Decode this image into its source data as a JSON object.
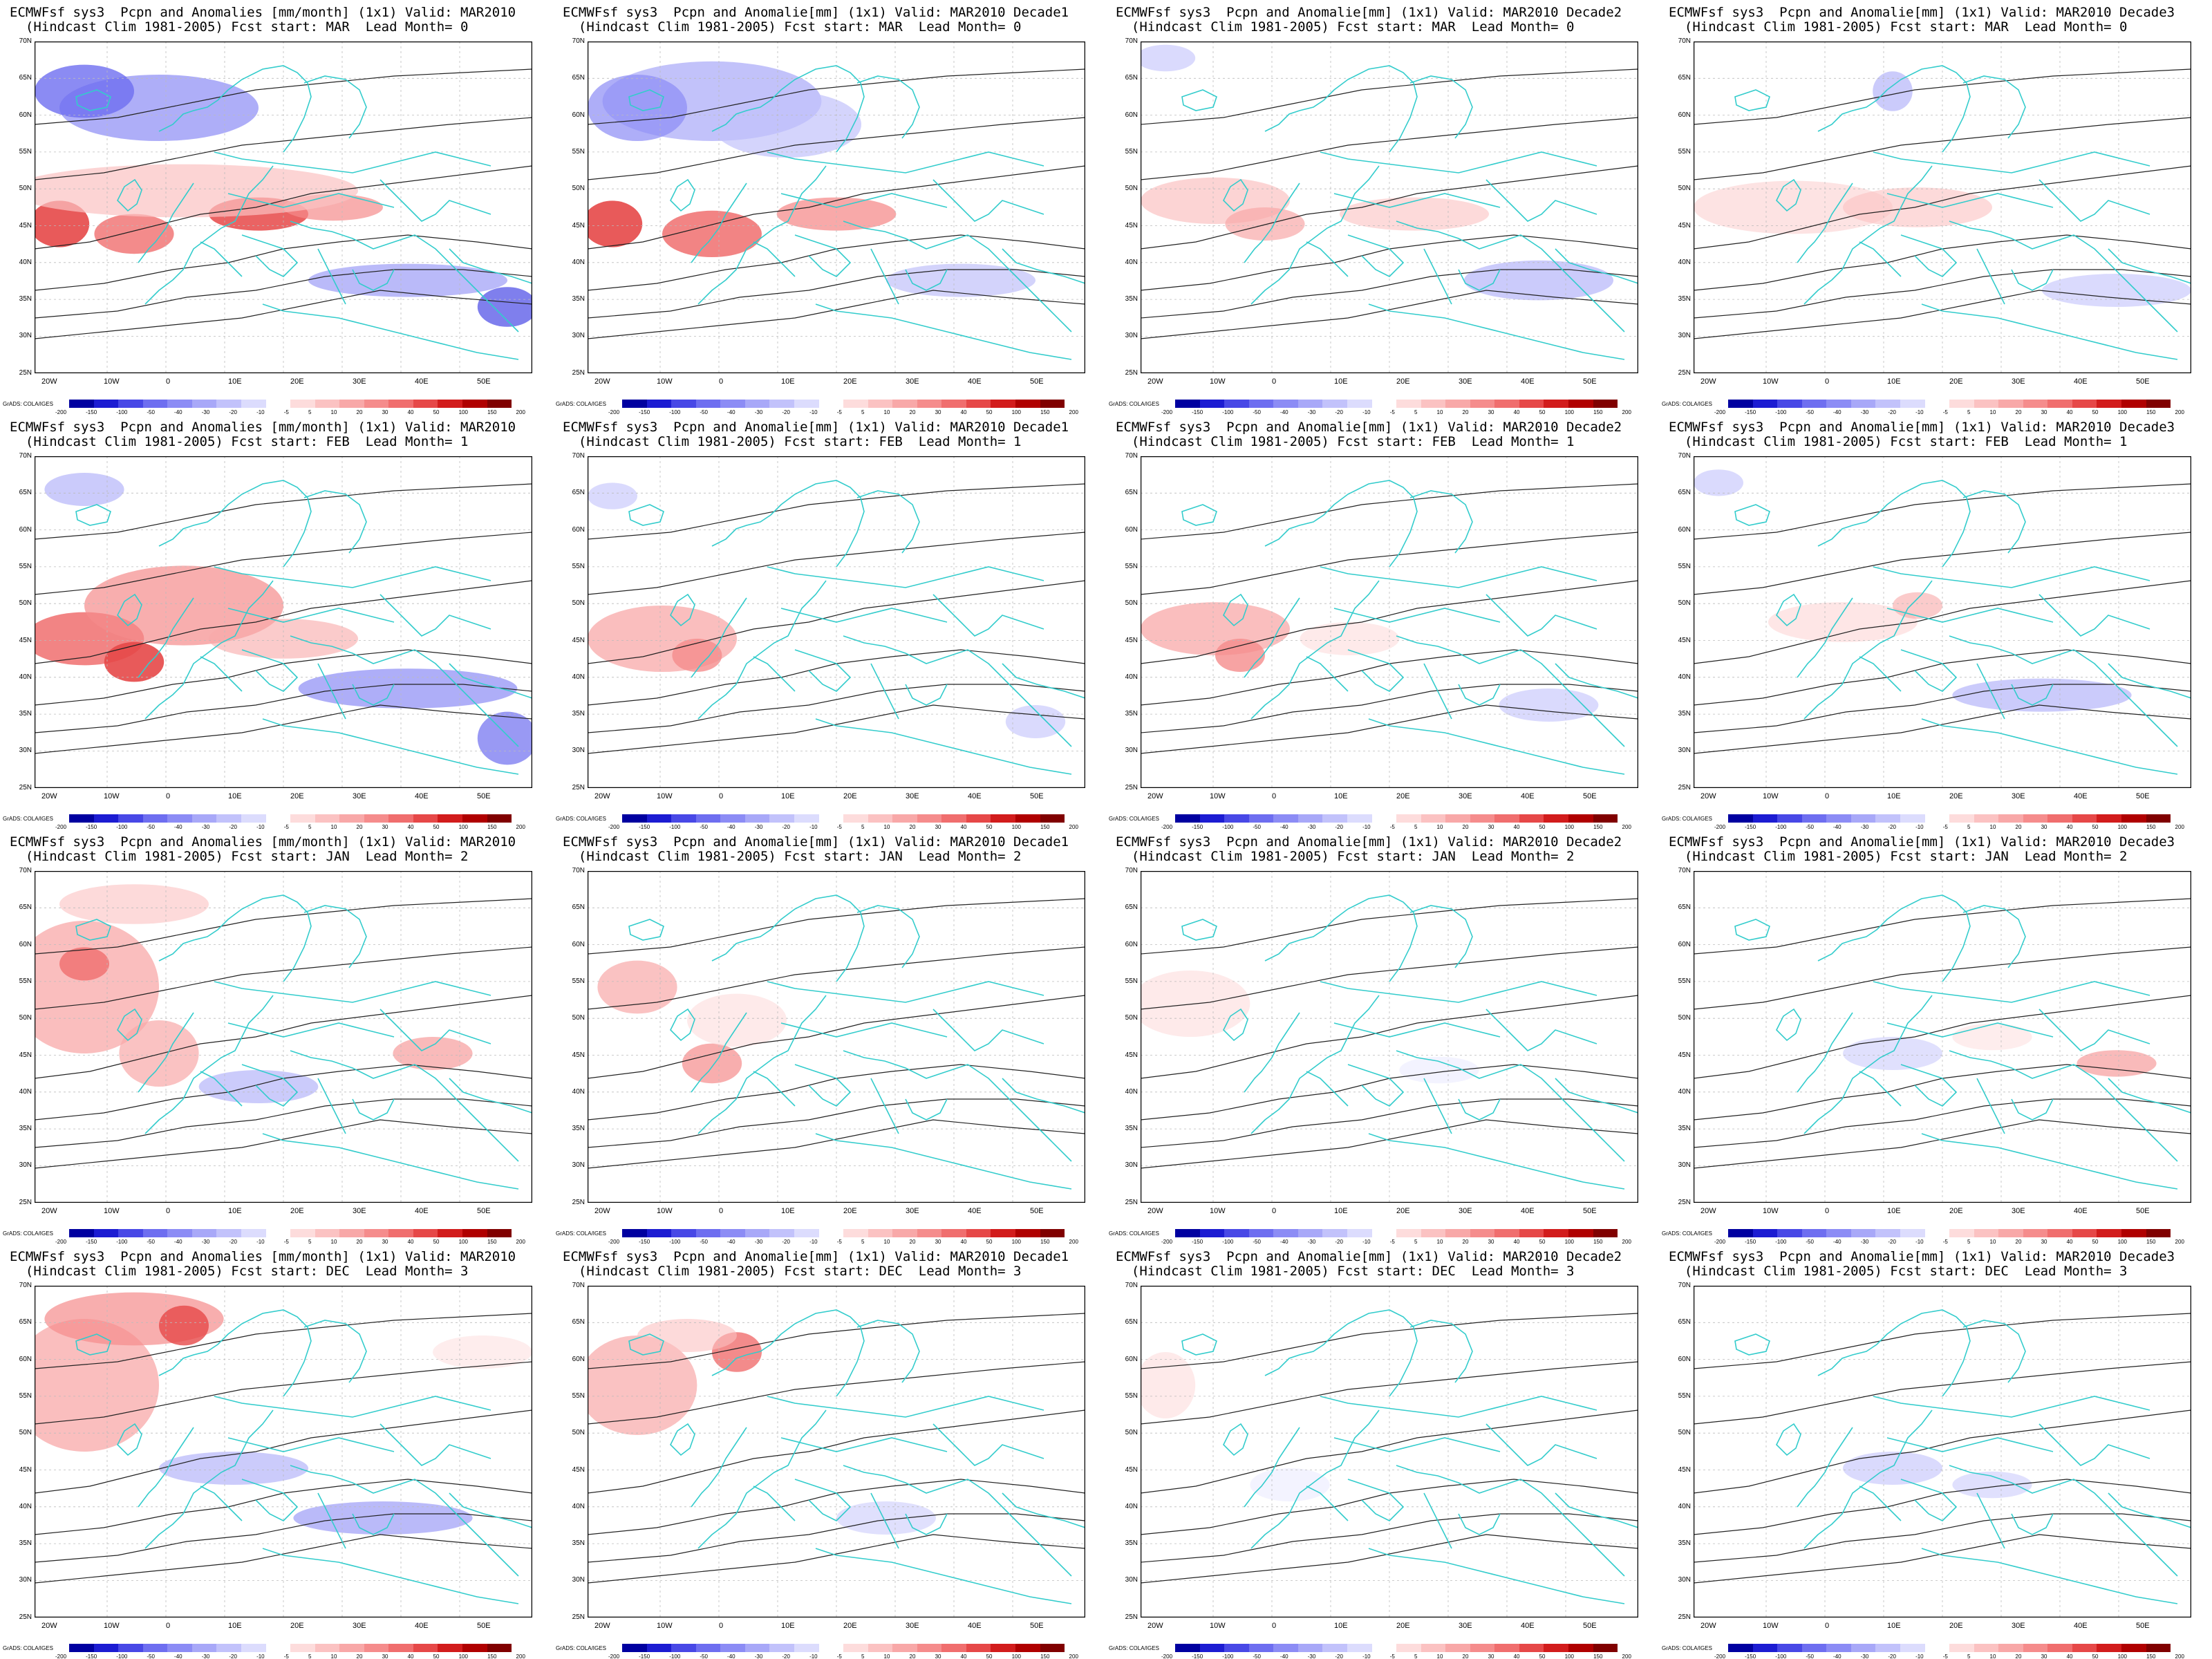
{
  "panels": [
    {
      "title1": "ECMWFsf sys3  Pcpn and Anomalies [mm/month] (1x1) Valid: MAR2010",
      "title2": "  (Hindcast Clim 1981-2005) Fcst start: MAR  Lead Month= 0"
    },
    {
      "title1": "ECMWFsf sys3  Pcpn and Anomalie[mm] (1x1) Valid: MAR2010 Decade1",
      "title2": "  (Hindcast Clim 1981-2005) Fcst start: MAR  Lead Month= 0"
    },
    {
      "title1": "ECMWFsf sys3  Pcpn and Anomalie[mm] (1x1) Valid: MAR2010 Decade2",
      "title2": "  (Hindcast Clim 1981-2005) Fcst start: MAR  Lead Month= 0"
    },
    {
      "title1": "ECMWFsf sys3  Pcpn and Anomalie[mm] (1x1) Valid: MAR2010 Decade3",
      "title2": "  (Hindcast Clim 1981-2005) Fcst start: MAR  Lead Month= 0"
    },
    {
      "title1": "ECMWFsf sys3  Pcpn and Anomalies [mm/month] (1x1) Valid: MAR2010",
      "title2": "  (Hindcast Clim 1981-2005) Fcst start: FEB  Lead Month= 1"
    },
    {
      "title1": "ECMWFsf sys3  Pcpn and Anomalie[mm] (1x1) Valid: MAR2010 Decade1",
      "title2": "  (Hindcast Clim 1981-2005) Fcst start: FEB  Lead Month= 1"
    },
    {
      "title1": "ECMWFsf sys3  Pcpn and Anomalie[mm] (1x1) Valid: MAR2010 Decade2",
      "title2": "  (Hindcast Clim 1981-2005) Fcst start: FEB  Lead Month= 1"
    },
    {
      "title1": "ECMWFsf sys3  Pcpn and Anomalie[mm] (1x1) Valid: MAR2010 Decade3",
      "title2": "  (Hindcast Clim 1981-2005) Fcst start: FEB  Lead Month= 1"
    },
    {
      "title1": "ECMWFsf sys3  Pcpn and Anomalies [mm/month] (1x1) Valid: MAR2010",
      "title2": "  (Hindcast Clim 1981-2005) Fcst start: JAN  Lead Month= 2"
    },
    {
      "title1": "ECMWFsf sys3  Pcpn and Anomalie[mm] (1x1) Valid: MAR2010 Decade1",
      "title2": "  (Hindcast Clim 1981-2005) Fcst start: JAN  Lead Month= 2"
    },
    {
      "title1": "ECMWFsf sys3  Pcpn and Anomalie[mm] (1x1) Valid: MAR2010 Decade2",
      "title2": "  (Hindcast Clim 1981-2005) Fcst start: JAN  Lead Month= 2"
    },
    {
      "title1": "ECMWFsf sys3  Pcpn and Anomalie[mm] (1x1) Valid: MAR2010 Decade3",
      "title2": "  (Hindcast Clim 1981-2005) Fcst start: JAN  Lead Month= 2"
    },
    {
      "title1": "ECMWFsf sys3  Pcpn and Anomalies [mm/month] (1x1) Valid: MAR2010",
      "title2": "  (Hindcast Clim 1981-2005) Fcst start: DEC  Lead Month= 3"
    },
    {
      "title1": "ECMWFsf sys3  Pcpn and Anomalie[mm] (1x1) Valid: MAR2010 Decade1",
      "title2": "  (Hindcast Clim 1981-2005) Fcst start: DEC  Lead Month= 3"
    },
    {
      "title1": "ECMWFsf sys3  Pcpn and Anomalie[mm] (1x1) Valid: MAR2010 Decade2",
      "title2": "  (Hindcast Clim 1981-2005) Fcst start: DEC  Lead Month= 3"
    },
    {
      "title1": "ECMWFsf sys3  Pcpn and Anomalie[mm] (1x1) Valid: MAR2010 Decade3",
      "title2": "  (Hindcast Clim 1981-2005) Fcst start: DEC  Lead Month= 3"
    }
  ],
  "lat_labels": [
    "70N",
    "65N",
    "60N",
    "55N",
    "50N",
    "45N",
    "40N",
    "35N",
    "30N",
    "25N"
  ],
  "lon_labels": [
    "20W",
    "10W",
    "0",
    "10E",
    "20E",
    "30E",
    "40E",
    "50E"
  ],
  "credit": "GrADS: COLA/IGES",
  "colorbar_ticks": [
    "-200",
    "-150",
    "-100",
    "-50",
    "-40",
    "-30",
    "-20",
    "-10",
    "-5",
    "5",
    "10",
    "20",
    "30",
    "40",
    "50",
    "100",
    "150",
    "200"
  ],
  "colorbar_colors": [
    "#0000a0",
    "#1c1cd2",
    "#4848e6",
    "#6e6ef0",
    "#8c8cf5",
    "#a8a8f8",
    "#c2c2fb",
    "#dcdcfd",
    "#ffffff",
    "#fddcdc",
    "#fbc2c2",
    "#f8a8a8",
    "#f58c8c",
    "#f06e6e",
    "#e64848",
    "#d21c1c",
    "#b00000",
    "#800000"
  ],
  "colors": {
    "coast": "#33cccc",
    "contour": "#222222",
    "grid": "#bbbbbb"
  }
}
